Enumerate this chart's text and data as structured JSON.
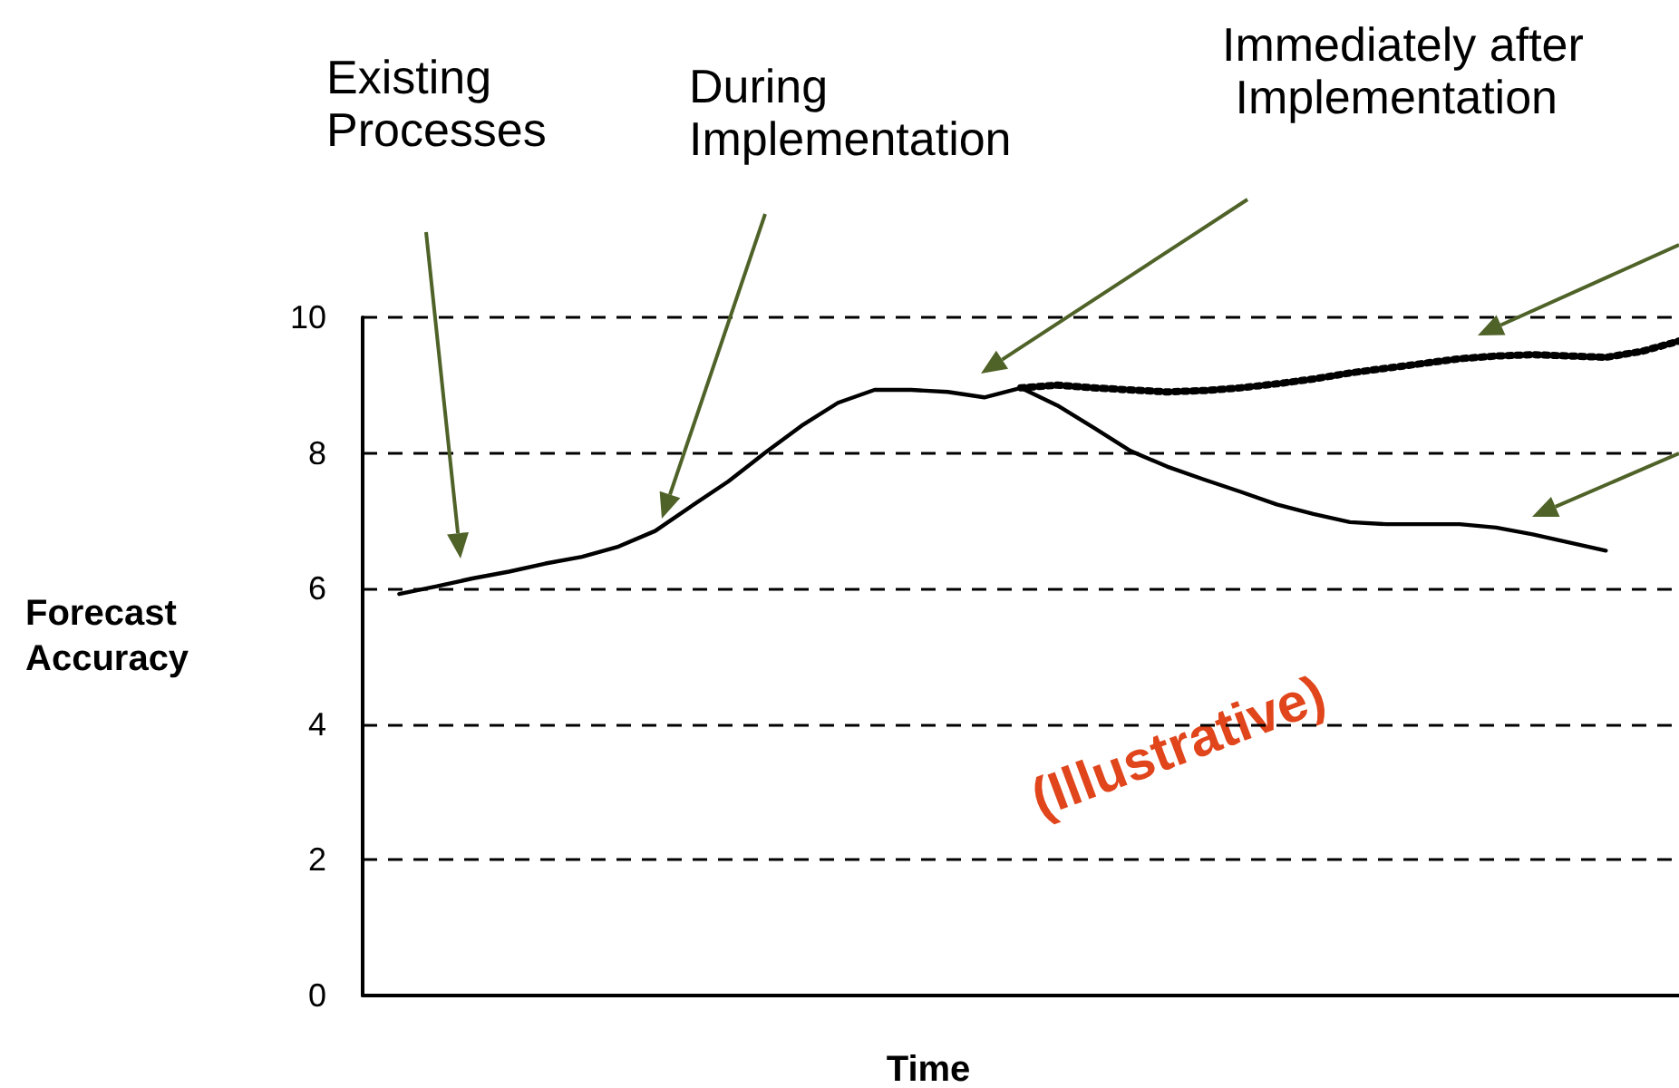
{
  "chart_data": {
    "type": "line",
    "xlabel": "Time",
    "ylabel": "Forecast Accuracy",
    "annotations": [
      "Existing Processes",
      "During Implementation",
      "Immediately after Implementation",
      "(Illustrative)"
    ],
    "categories": [
      null,
      null,
      null,
      null,
      null,
      null,
      null,
      null,
      null,
      null,
      null,
      null,
      null,
      null,
      null,
      null,
      null,
      null,
      null,
      null,
      null,
      null,
      null,
      null,
      null,
      null,
      null,
      null,
      null,
      null,
      null,
      null,
      null,
      null,
      null,
      null,
      null
    ],
    "series": [
      {
        "color": "#000000",
        "line_style": "solid",
        "values": [
          null,
          5.92,
          6.03,
          6.15,
          6.25,
          6.37,
          6.47,
          6.62,
          6.85,
          7.22,
          7.58,
          8.0,
          8.4,
          8.74,
          8.93,
          8.93,
          8.9,
          8.82,
          8.96,
          8.7,
          8.37,
          8.03,
          7.8,
          7.61,
          7.43,
          7.24,
          7.1,
          6.98,
          6.95,
          6.95,
          6.95,
          6.9,
          6.8,
          6.68,
          6.56,
          null,
          null
        ]
      },
      {
        "color": "#000000",
        "line_style": "dotted",
        "values": [
          null,
          null,
          null,
          null,
          null,
          null,
          null,
          null,
          null,
          null,
          null,
          null,
          null,
          null,
          null,
          null,
          null,
          null,
          8.96,
          9.0,
          8.96,
          8.93,
          8.9,
          8.92,
          8.96,
          9.02,
          9.09,
          9.18,
          9.25,
          9.32,
          9.39,
          9.43,
          9.45,
          9.43,
          9.41,
          9.5,
          9.65
        ]
      }
    ],
    "ylim": [
      0,
      10
    ],
    "yticks": [
      0,
      2,
      4,
      6,
      8,
      10
    ],
    "grid": "y",
    "legend": false,
    "marker": "none",
    "tick_labels": "y"
  }
}
